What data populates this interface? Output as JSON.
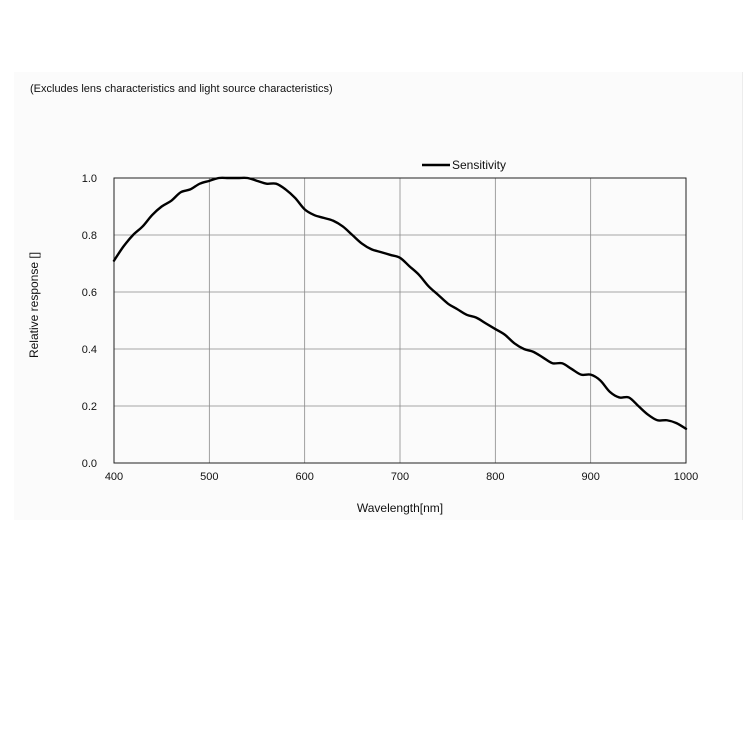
{
  "note": "(Excludes lens characteristics and light source characteristics)",
  "chart_data": {
    "type": "line",
    "title": "",
    "xlabel": "Wavelength[nm]",
    "ylabel": "Relative response []",
    "xlim": [
      400,
      1000
    ],
    "ylim": [
      0.0,
      1.0
    ],
    "xticks": [
      "400",
      "500",
      "600",
      "700",
      "800",
      "900",
      "1000"
    ],
    "yticks": [
      "0.0",
      "0.2",
      "0.4",
      "0.6",
      "0.8",
      "1.0"
    ],
    "grid": true,
    "legend_position": "top-right",
    "series": [
      {
        "name": "Sensitivity",
        "color": "#000000",
        "x": [
          400,
          410,
          420,
          430,
          440,
          450,
          460,
          470,
          480,
          490,
          500,
          510,
          520,
          530,
          540,
          550,
          560,
          570,
          580,
          590,
          600,
          610,
          620,
          630,
          640,
          650,
          660,
          670,
          680,
          690,
          700,
          710,
          720,
          730,
          740,
          750,
          760,
          770,
          780,
          790,
          800,
          810,
          820,
          830,
          840,
          850,
          860,
          870,
          880,
          890,
          900,
          910,
          920,
          930,
          940,
          950,
          960,
          970,
          980,
          990,
          1000
        ],
        "y": [
          0.71,
          0.76,
          0.8,
          0.83,
          0.87,
          0.9,
          0.92,
          0.95,
          0.96,
          0.98,
          0.99,
          1.0,
          1.0,
          1.0,
          1.0,
          0.99,
          0.98,
          0.98,
          0.96,
          0.93,
          0.89,
          0.87,
          0.86,
          0.85,
          0.83,
          0.8,
          0.77,
          0.75,
          0.74,
          0.73,
          0.72,
          0.69,
          0.66,
          0.62,
          0.59,
          0.56,
          0.54,
          0.52,
          0.51,
          0.49,
          0.47,
          0.45,
          0.42,
          0.4,
          0.39,
          0.37,
          0.35,
          0.35,
          0.33,
          0.31,
          0.31,
          0.29,
          0.25,
          0.23,
          0.23,
          0.2,
          0.17,
          0.15,
          0.15,
          0.14,
          0.12
        ]
      }
    ]
  }
}
